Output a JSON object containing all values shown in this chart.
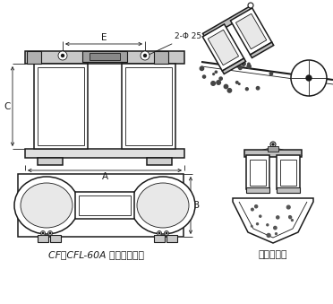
{
  "title_left": "CF、CFL-60A 型外形尺寸图",
  "title_right": "安装示意图",
  "label_E": "E",
  "label_A": "A",
  "label_C": "C",
  "label_B": "B",
  "label_hole": "2-Φ 25",
  "bg_color": "#ffffff",
  "line_color": "#1a1a1a"
}
